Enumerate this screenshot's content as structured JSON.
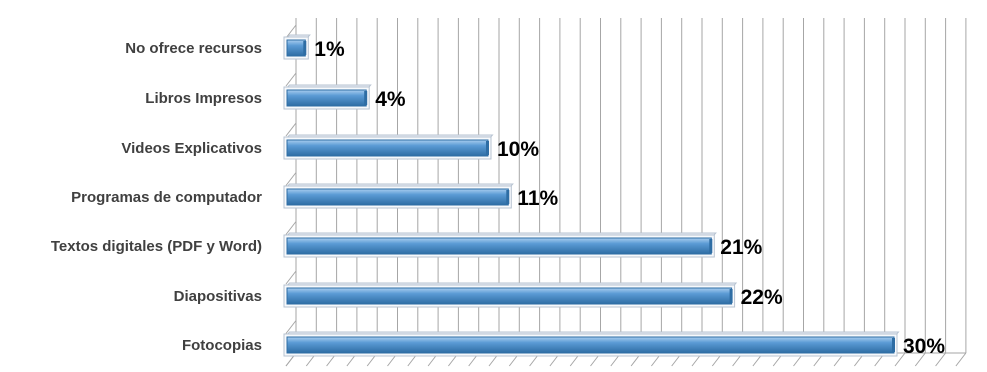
{
  "chart_data": {
    "type": "bar",
    "orientation": "horizontal",
    "style": "3d",
    "title": "",
    "xlabel": "",
    "ylabel": "",
    "categories": [
      "No ofrece recursos",
      "Libros Impresos",
      "Videos Explicativos",
      "Programas de computador",
      "Textos digitales (PDF y Word)",
      "Diapositivas",
      "Fotocopias"
    ],
    "values": [
      1,
      4,
      10,
      11,
      21,
      22,
      30
    ],
    "value_labels": [
      "1%",
      "4%",
      "10%",
      "11%",
      "21%",
      "22%",
      "30%"
    ],
    "xlim": [
      0,
      33
    ],
    "grid": true,
    "legend": "none",
    "colors": {
      "bar": "#5b9bd5",
      "bar_dark": "#2e6da4",
      "bar_highlight": "#a9cdef",
      "grid": "#a6a6a6",
      "category_text": "#404040",
      "value_text": "#000000"
    }
  }
}
